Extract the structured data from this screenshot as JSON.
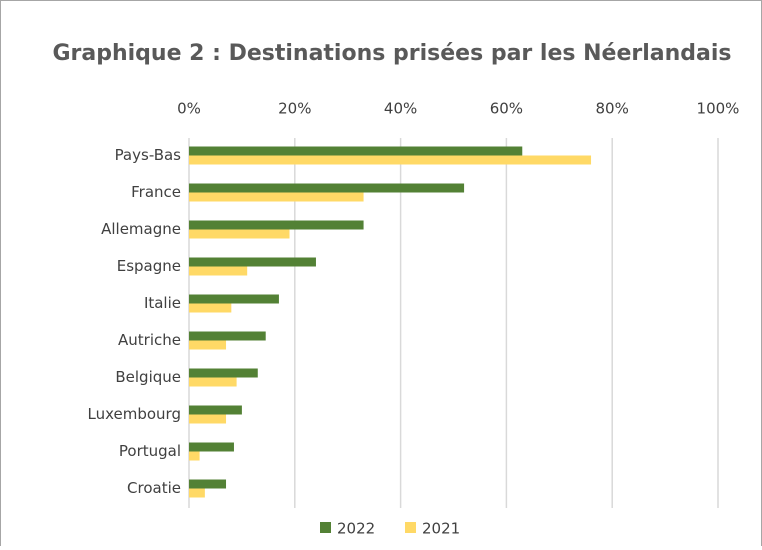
{
  "chart_data": {
    "type": "barh",
    "title": "Graphique 2 : Destinations prisées par les Néerlandais",
    "categories": [
      "Pays-Bas",
      "France",
      "Allemagne",
      "Espagne",
      "Italie",
      "Autriche",
      "Belgique",
      "Luxembourg",
      "Portugal",
      "Croatie"
    ],
    "series": [
      {
        "name": "2022",
        "color": "#538135",
        "values": [
          63,
          52,
          33,
          24,
          17,
          14.5,
          13,
          10,
          8.5,
          7
        ]
      },
      {
        "name": "2021",
        "color": "#ffd966",
        "values": [
          76,
          33,
          19,
          11,
          8,
          7,
          9,
          7,
          2,
          3
        ]
      }
    ],
    "xlim": [
      0,
      100
    ],
    "xticks": [
      {
        "value": 0,
        "label": "0%"
      },
      {
        "value": 20,
        "label": "20%"
      },
      {
        "value": 40,
        "label": "40%"
      },
      {
        "value": 60,
        "label": "60%"
      },
      {
        "value": 80,
        "label": "80%"
      },
      {
        "value": 100,
        "label": "100%"
      }
    ],
    "grid": true,
    "legend": "bottom"
  }
}
